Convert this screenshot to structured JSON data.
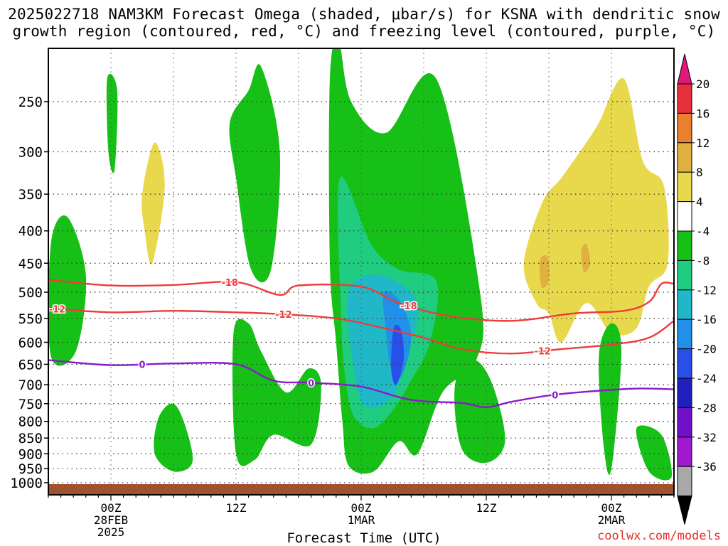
{
  "title_line1": "2025022718 NAM3KM Forecast Omega (shaded, μbar/s) for KSNA with dendritic snow",
  "title_line2": "growth region (contoured, red, °C) and freezing level (contoured, purple, °C)",
  "credit": "coolwx.com/models",
  "chart_data": {
    "type": "heatmap",
    "title": "2025022718 NAM3KM Forecast Omega (shaded, μbar/s) for KSNA with dendritic snow growth region (contoured, red, °C) and freezing level (contoured, purple, °C)",
    "xlabel": "Forecast Time (UTC)",
    "ylabel": "",
    "x_range_hours": [
      -5,
      45
    ],
    "x_ticks": [
      {
        "hour": 0,
        "labels": [
          "00Z",
          "28FEB",
          "2025"
        ]
      },
      {
        "hour": 10,
        "labels": [
          "12Z"
        ]
      },
      {
        "hour": 20,
        "labels": [
          "00Z",
          "1MAR"
        ]
      },
      {
        "hour": 30,
        "labels": [
          "12Z"
        ]
      },
      {
        "hour": 40,
        "labels": [
          "00Z",
          "2MAR"
        ]
      }
    ],
    "y_ticks": [
      250,
      300,
      350,
      400,
      450,
      500,
      550,
      600,
      650,
      700,
      750,
      800,
      850,
      900,
      950,
      1000
    ],
    "y_range": [
      1030,
      200
    ],
    "colorbar": {
      "labels": [
        "20",
        "16",
        "12",
        "8",
        "4",
        "-4",
        "-8",
        "-12",
        "-16",
        "-20",
        "-24",
        "-28",
        "-32",
        "-36"
      ],
      "colors": [
        "#e0187a",
        "#e8303c",
        "#e8802c",
        "#e0b040",
        "#e8d84c",
        "#ffffff",
        "#16c016",
        "#1fcc80",
        "#20b8c8",
        "#2090e8",
        "#2850e8",
        "#2020c0",
        "#7010c8",
        "#a018d0",
        "#a8a8a8",
        "#000000"
      ]
    },
    "omega_blobs": [
      {
        "level": "pos1",
        "pts": [
          [
            -4.8,
            630
          ],
          [
            -4.8,
            420
          ],
          [
            -3.5,
            380
          ],
          [
            -2,
            470
          ],
          [
            -2.8,
            620
          ]
        ],
        "color": "#16c016"
      },
      {
        "level": "pos1",
        "pts": [
          [
            -0.3,
            230
          ],
          [
            0.5,
            240
          ],
          [
            0.3,
            320
          ],
          [
            -0.2,
            300
          ]
        ],
        "color": "#16c016"
      },
      {
        "level": "pos",
        "pts": [
          [
            2.5,
            350
          ],
          [
            3.5,
            290
          ],
          [
            4.3,
            340
          ],
          [
            3.3,
            450
          ],
          [
            2.7,
            400
          ]
        ],
        "color": "#e8d84c"
      },
      {
        "level": "pos1",
        "pts": [
          [
            9.5,
            270
          ],
          [
            11,
            240
          ],
          [
            12,
            220
          ],
          [
            13.5,
            300
          ],
          [
            12.8,
            460
          ],
          [
            11.2,
            460
          ],
          [
            10,
            330
          ]
        ],
        "color": "#16c016"
      },
      {
        "level": "neg",
        "pts": [
          [
            17.5,
            230
          ],
          [
            18.2,
            200
          ],
          [
            19.2,
            250
          ],
          [
            22,
            280
          ],
          [
            26,
            230
          ],
          [
            29.5,
            500
          ],
          [
            29.2,
            640
          ],
          [
            26.5,
            720
          ],
          [
            24.5,
            900
          ],
          [
            23,
            860
          ],
          [
            21,
            960
          ],
          [
            19,
            940
          ],
          [
            18.5,
            800
          ],
          [
            18,
            600
          ],
          [
            17.5,
            450
          ]
        ],
        "color": "#16c016"
      },
      {
        "level": "neg2",
        "pts": [
          [
            18.3,
            330
          ],
          [
            20.8,
            420
          ],
          [
            23,
            460
          ],
          [
            26,
            480
          ],
          [
            25.5,
            600
          ],
          [
            23.8,
            700
          ],
          [
            22.5,
            770
          ],
          [
            21,
            820
          ],
          [
            19.5,
            790
          ],
          [
            18.8,
            700
          ],
          [
            18.4,
            550
          ]
        ],
        "color": "#1fcc80"
      },
      {
        "level": "neg3",
        "pts": [
          [
            19,
            500
          ],
          [
            21.5,
            470
          ],
          [
            24.5,
            520
          ],
          [
            23.5,
            640
          ],
          [
            22.5,
            730
          ],
          [
            20.5,
            760
          ],
          [
            19.5,
            680
          ]
        ],
        "color": "#20b8c8"
      },
      {
        "level": "neg4",
        "pts": [
          [
            21.8,
            500
          ],
          [
            23.2,
            520
          ],
          [
            24,
            590
          ],
          [
            23.2,
            680
          ],
          [
            22.4,
            660
          ],
          [
            22,
            580
          ]
        ],
        "color": "#2090e8"
      },
      {
        "level": "neg5",
        "pts": [
          [
            22.6,
            570
          ],
          [
            23.2,
            575
          ],
          [
            23.4,
            640
          ],
          [
            22.8,
            700
          ],
          [
            22.4,
            660
          ]
        ],
        "color": "#2850e8"
      },
      {
        "level": "pos",
        "pts": [
          [
            33,
            450
          ],
          [
            34.5,
            360
          ],
          [
            36,
            330
          ],
          [
            38,
            290
          ],
          [
            39,
            270
          ],
          [
            41,
            230
          ],
          [
            42.5,
            310
          ],
          [
            44.2,
            340
          ],
          [
            44.5,
            450
          ],
          [
            43,
            490
          ],
          [
            42,
            570
          ],
          [
            40,
            580
          ],
          [
            38,
            520
          ],
          [
            36,
            600
          ],
          [
            35,
            540
          ],
          [
            34,
            520
          ]
        ],
        "color": "#e8d84c"
      },
      {
        "level": "pos2",
        "pts": [
          [
            37.6,
            430
          ],
          [
            38,
            420
          ],
          [
            38.3,
            450
          ],
          [
            37.8,
            465
          ]
        ],
        "color": "#e0b040"
      },
      {
        "level": "pos2",
        "pts": [
          [
            34.3,
            445
          ],
          [
            34.9,
            440
          ],
          [
            35,
            480
          ],
          [
            34.4,
            490
          ]
        ],
        "color": "#e0b040"
      },
      {
        "level": "pos1",
        "pts": [
          [
            39,
            630
          ],
          [
            40,
            560
          ],
          [
            40.8,
            620
          ],
          [
            40,
            950
          ],
          [
            39.4,
            880
          ]
        ],
        "color": "#16c016"
      },
      {
        "level": "pos1",
        "pts": [
          [
            9.8,
            580
          ],
          [
            11,
            560
          ],
          [
            12,
            620
          ],
          [
            14,
            720
          ],
          [
            15.8,
            660
          ],
          [
            16.8,
            700
          ],
          [
            16,
            870
          ],
          [
            13,
            840
          ],
          [
            11.5,
            920
          ],
          [
            10,
            900
          ]
        ],
        "color": "#16c016"
      },
      {
        "level": "pos1",
        "pts": [
          [
            3.8,
            790
          ],
          [
            5,
            750
          ],
          [
            6,
            820
          ],
          [
            6.5,
            930
          ],
          [
            5,
            960
          ],
          [
            3.5,
            900
          ]
        ],
        "color": "#16c016"
      },
      {
        "level": "pos1",
        "pts": [
          [
            27.5,
            700
          ],
          [
            29,
            640
          ],
          [
            30.5,
            700
          ],
          [
            31.5,
            860
          ],
          [
            30,
            930
          ],
          [
            28,
            880
          ]
        ],
        "color": "#16c016"
      },
      {
        "level": "pos1",
        "pts": [
          [
            42,
            820
          ],
          [
            44,
            840
          ],
          [
            44.8,
            980
          ],
          [
            43,
            960
          ]
        ],
        "color": "#16c016"
      }
    ],
    "dgz_contours": [
      {
        "label": "-18",
        "pts": [
          [
            -5,
            478
          ],
          [
            0,
            488
          ],
          [
            5,
            487
          ],
          [
            10,
            482
          ],
          [
            13.5,
            505
          ],
          [
            15,
            488
          ],
          [
            20,
            490
          ],
          [
            23,
            520
          ],
          [
            27,
            545
          ],
          [
            32,
            555
          ],
          [
            37,
            540
          ],
          [
            41,
            535
          ],
          [
            43,
            518
          ],
          [
            44,
            485
          ],
          [
            45,
            485
          ]
        ]
      },
      {
        "label": "-12",
        "pts": [
          [
            -5,
            530
          ],
          [
            0,
            538
          ],
          [
            5,
            535
          ],
          [
            10,
            538
          ],
          [
            14,
            542
          ],
          [
            18,
            550
          ],
          [
            21,
            565
          ],
          [
            25,
            590
          ],
          [
            28,
            615
          ],
          [
            32,
            625
          ],
          [
            36,
            615
          ],
          [
            40,
            605
          ],
          [
            43,
            590
          ],
          [
            45,
            555
          ]
        ]
      }
    ],
    "freezing_level": {
      "label": "0",
      "pts": [
        [
          -5,
          640
        ],
        [
          0,
          652
        ],
        [
          5,
          648
        ],
        [
          10,
          650
        ],
        [
          13,
          690
        ],
        [
          16,
          695
        ],
        [
          20,
          705
        ],
        [
          24,
          740
        ],
        [
          28,
          748
        ],
        [
          30,
          760
        ],
        [
          32,
          745
        ],
        [
          35,
          728
        ],
        [
          38,
          718
        ],
        [
          42,
          710
        ],
        [
          45,
          712
        ]
      ]
    }
  }
}
